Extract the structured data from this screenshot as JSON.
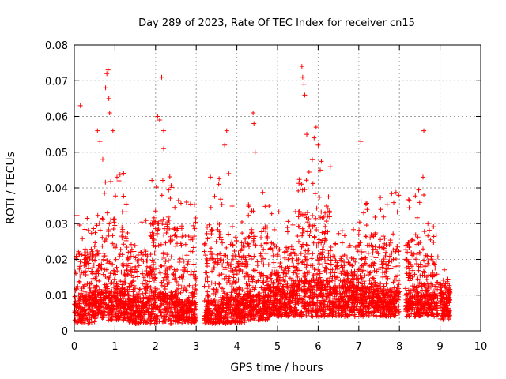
{
  "chart_data": {
    "type": "scatter",
    "title": "Day 289 of 2023, Rate Of TEC Index for receiver cn15",
    "xlabel": "GPS time / hours",
    "ylabel": "ROTI / TECUs",
    "xlim": [
      0,
      10
    ],
    "ylim": [
      0,
      0.08
    ],
    "x_ticks": [
      "0",
      "1",
      "2",
      "3",
      "4",
      "5",
      "6",
      "7",
      "8",
      "9",
      "10"
    ],
    "y_ticks": [
      "0",
      "0.01",
      "0.02",
      "0.03",
      "0.04",
      "0.05",
      "0.06",
      "0.07",
      "0.08"
    ],
    "grid": true,
    "marker": "+",
    "color": "#ff0000",
    "series": [
      {
        "name": "ROTI",
        "points": [
          [
            0.15,
            0.063
          ],
          [
            0.57,
            0.056
          ],
          [
            0.63,
            0.053
          ],
          [
            0.7,
            0.048
          ],
          [
            0.77,
            0.068
          ],
          [
            0.8,
            0.072
          ],
          [
            0.83,
            0.073
          ],
          [
            0.85,
            0.065
          ],
          [
            0.87,
            0.061
          ],
          [
            0.95,
            0.056
          ],
          [
            1.05,
            0.043
          ],
          [
            1.1,
            0.042
          ],
          [
            2.05,
            0.06
          ],
          [
            2.1,
            0.059
          ],
          [
            2.2,
            0.051
          ],
          [
            2.2,
            0.056
          ],
          [
            2.15,
            0.071
          ],
          [
            3.35,
            0.043
          ],
          [
            3.75,
            0.056
          ],
          [
            3.7,
            0.052
          ],
          [
            3.8,
            0.044
          ],
          [
            4.4,
            0.061
          ],
          [
            4.42,
            0.058
          ],
          [
            4.45,
            0.05
          ],
          [
            5.6,
            0.074
          ],
          [
            5.62,
            0.071
          ],
          [
            5.65,
            0.069
          ],
          [
            5.67,
            0.066
          ],
          [
            5.72,
            0.055
          ],
          [
            5.9,
            0.054
          ],
          [
            5.95,
            0.057
          ],
          [
            6.0,
            0.052
          ],
          [
            6.05,
            0.045
          ],
          [
            7.05,
            0.053
          ],
          [
            8.6,
            0.056
          ],
          [
            8.58,
            0.043
          ],
          [
            8.6,
            0.038
          ],
          [
            8.7,
            0.03
          ]
        ]
      }
    ],
    "dense_segments": [
      {
        "x": [
          0.0,
          0.5
        ],
        "y_floor": [
          0.002,
          0.009
        ],
        "y_peak": 0.033
      },
      {
        "x": [
          0.5,
          1.3
        ],
        "y_floor": [
          0.003,
          0.011
        ],
        "y_peak": 0.045
      },
      {
        "x": [
          1.3,
          1.9
        ],
        "y_floor": [
          0.002,
          0.009
        ],
        "y_peak": 0.032
      },
      {
        "x": [
          1.9,
          2.5
        ],
        "y_floor": [
          0.002,
          0.01
        ],
        "y_peak": 0.045
      },
      {
        "x": [
          2.5,
          3.0
        ],
        "y_floor": [
          0.002,
          0.008
        ],
        "y_peak": 0.041
      },
      {
        "x": [
          3.2,
          3.6
        ],
        "y_floor": [
          0.002,
          0.008
        ],
        "y_peak": 0.043
      },
      {
        "x": [
          3.6,
          4.2
        ],
        "y_floor": [
          0.002,
          0.009
        ],
        "y_peak": 0.038
      },
      {
        "x": [
          4.2,
          4.8
        ],
        "y_floor": [
          0.003,
          0.01
        ],
        "y_peak": 0.04
      },
      {
        "x": [
          4.8,
          5.5
        ],
        "y_floor": [
          0.004,
          0.012
        ],
        "y_peak": 0.034
      },
      {
        "x": [
          5.5,
          6.3
        ],
        "y_floor": [
          0.004,
          0.014
        ],
        "y_peak": 0.048
      },
      {
        "x": [
          6.3,
          6.9
        ],
        "y_floor": [
          0.004,
          0.012
        ],
        "y_peak": 0.03
      },
      {
        "x": [
          6.9,
          7.5
        ],
        "y_floor": [
          0.004,
          0.012
        ],
        "y_peak": 0.04
      },
      {
        "x": [
          7.5,
          8.0
        ],
        "y_floor": [
          0.004,
          0.011
        ],
        "y_peak": 0.039
      },
      {
        "x": [
          8.15,
          8.6
        ],
        "y_floor": [
          0.004,
          0.01
        ],
        "y_peak": 0.04
      },
      {
        "x": [
          8.6,
          8.95
        ],
        "y_floor": [
          0.004,
          0.01
        ],
        "y_peak": 0.03
      },
      {
        "x": [
          9.0,
          9.25
        ],
        "y_floor": [
          0.003,
          0.009
        ],
        "y_peak": 0.019
      }
    ]
  }
}
